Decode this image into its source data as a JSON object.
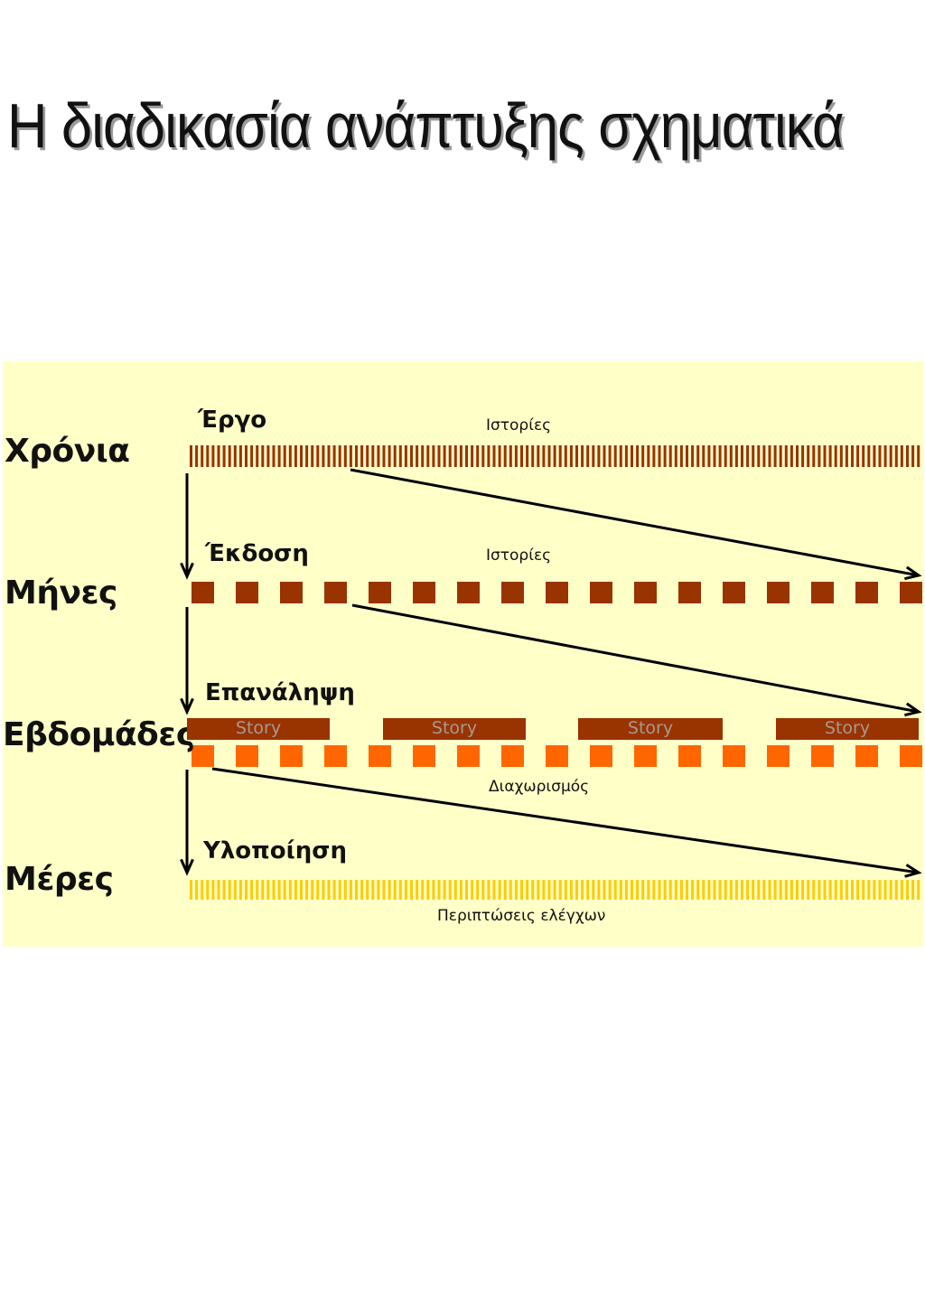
{
  "title": "Η διαδικασία ανάπτυξης σχηματικά",
  "levels": {
    "years": "Χρόνια",
    "months": "Μήνες",
    "weeks": "Εβδομάδες",
    "days": "Μέρες"
  },
  "stages": {
    "project": "Έργο",
    "release": "Έκδοση",
    "iteration": "Επανάληψη",
    "implementation": "Υλοποίηση"
  },
  "captions": {
    "stories_1": "Ιστορίες",
    "stories_2": "Ιστορίες",
    "breakdown": "Διαχωρισμός",
    "test_cases": "Περιπτώσεις ελέγχων"
  },
  "story_blocks": [
    "Story",
    "Story",
    "Story",
    "Story"
  ],
  "colors": {
    "panel_background": "#ffffc8",
    "years_ticks": "#993300",
    "months_blocks": "#993300",
    "story_blocks": "#993300",
    "weeks_blocks": "#ff6600",
    "days_ticks": "#ffcc00",
    "arrows": "#000000"
  }
}
